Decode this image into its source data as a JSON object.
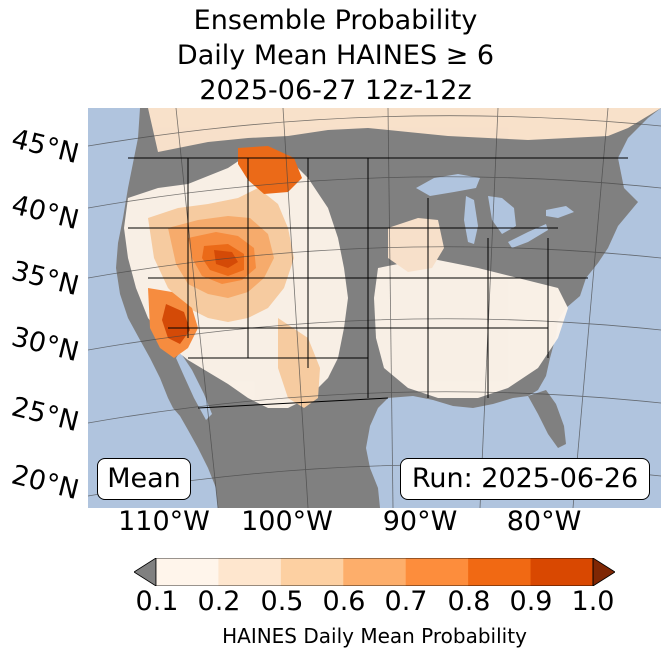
{
  "title": {
    "line1": "Ensemble Probability",
    "line2": "Daily Mean HAINES ≥ 6",
    "line3": "2025-06-27 12z-12z"
  },
  "map": {
    "lat_labels": [
      "45°N",
      "40°N",
      "35°N",
      "30°N",
      "25°N",
      "20°N"
    ],
    "lon_labels": [
      "110°W",
      "100°W",
      "90°W",
      "80°W"
    ],
    "mean_label": "Mean",
    "run_label": "Run: 2025-06-26",
    "colors": {
      "ocean": "#b0c4de",
      "land_masked": "#808080",
      "border": "#000000",
      "gridline": "#444444"
    }
  },
  "colorbar": {
    "ticks": [
      "0.1",
      "0.2",
      "0.5",
      "0.6",
      "0.7",
      "0.8",
      "0.9",
      "1.0"
    ],
    "colors": [
      "#fff5eb",
      "#fee6ce",
      "#fdd0a2",
      "#fdae6b",
      "#fd8d3c",
      "#f16913",
      "#d94801",
      "#a63603"
    ],
    "under_color": "#808080",
    "over_color": "#7f2704",
    "label": "HAINES Daily Mean Probability"
  }
}
